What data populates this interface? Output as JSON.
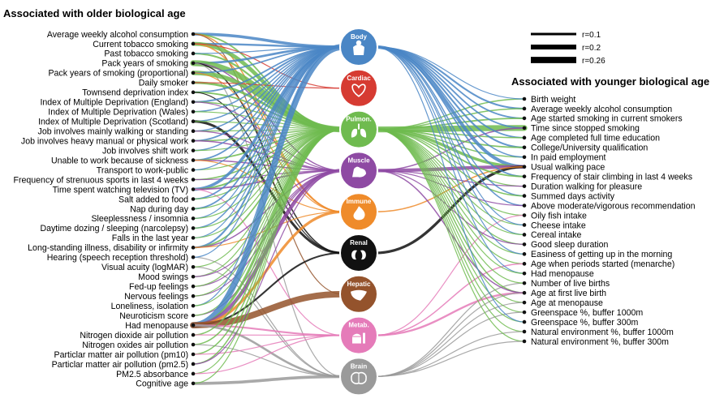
{
  "headings": {
    "older": "Associated with older biological age",
    "younger": "Associated with younger biological age"
  },
  "legend": [
    {
      "label": "r=0.1",
      "r": 0.1
    },
    {
      "label": "r=0.2",
      "r": 0.2
    },
    {
      "label": "r=0.26",
      "r": 0.26
    }
  ],
  "organs": [
    {
      "label": "Body",
      "color": "#4a86c5",
      "icon": "body-icon"
    },
    {
      "label": "Cardiac",
      "color": "#d63b32",
      "icon": "heart-icon"
    },
    {
      "label": "Pulmon.",
      "color": "#6fbb4f",
      "icon": "lungs-icon"
    },
    {
      "label": "Muscle",
      "color": "#8e4aa3",
      "icon": "muscle-icon"
    },
    {
      "label": "Immune",
      "color": "#ef8b2a",
      "icon": "flame-icon"
    },
    {
      "label": "Renal",
      "color": "#111111",
      "icon": "kidneys-icon"
    },
    {
      "label": "Hepatic",
      "color": "#94532c",
      "icon": "liver-icon"
    },
    {
      "label": "Metab.",
      "color": "#e57bb9",
      "icon": "food-icon"
    },
    {
      "label": "Brain",
      "color": "#9a9a9a",
      "icon": "brain-icon"
    }
  ],
  "older_factors": [
    "Average weekly alcohol consumption",
    "Current tobacco smoking",
    "Past tobacco smoking",
    "Pack years of smoking",
    "Pack years of smoking (proportional)",
    "Daily smoker",
    "Townsend deprivation index",
    "Index of Multiple Deprivation (England)",
    "Index of Multiple Deprivation (Wales)",
    "Index of Multiple Deprivation (Scotland)",
    "Job involves mainly walking or standing",
    "Job involves heavy manual or physical work",
    "Job involves shift work",
    "Unable to work because of sickness",
    "Transport to work-public",
    "Frequency of strenuous sports in last 4 weeks",
    "Time spent watching television (TV)",
    "Salt added to food",
    "Nap during day",
    "Sleeplessness / insomnia",
    "Daytime dozing / sleeping (narcolepsy)",
    "Falls in the last year",
    "Long-standing illness, disability or infirmity",
    "Hearing (speech reception threshold)",
    "Visual acuity (logMAR)",
    "Mood swings",
    "Fed-up feelings",
    "Nervous feelings",
    "Loneliness, isolation",
    "Neuroticism score",
    "Had menopause",
    "Nitrogen dioxide air pollution",
    "Nitrogen oxides air pollution",
    "Particlar matter air pollution (pm10)",
    "Particlar matter air pollution (pm2.5)",
    "PM2.5 absorbance",
    "Cognitive age"
  ],
  "younger_factors": [
    "Birth weight",
    "Average weekly alcohol consumption",
    "Age started smoking in current smokers",
    "Time since stopped smoking",
    "Age completed full time education",
    "College/University qualification",
    "In paid employment",
    "Usual walking pace",
    "Frequency of stair climbing in last 4 weeks",
    "Duration walking for pleasure",
    "Summed days activity",
    "Above moderate/vigorous recommendation",
    "Oily fish intake",
    "Cheese intake",
    "Cereal intake",
    "Good sleep duration",
    "Easiness of getting up in the morning",
    "Age when periods started (menarche)",
    "Had menopause",
    "Number of live births",
    "Age at first live birth",
    "Age at menopause",
    "Greenspace %, buffer 1000m",
    "Greenspace %, buffer 300m",
    "Natural environment %, buffer 1000m",
    "Natural environment %, buffer 300m"
  ],
  "links_older": [
    {
      "factor": 0,
      "organ": 0,
      "r": 0.12
    },
    {
      "factor": 0,
      "organ": 2,
      "r": 0.06
    },
    {
      "factor": 0,
      "organ": 4,
      "r": 0.05
    },
    {
      "factor": 0,
      "organ": 6,
      "r": 0.04
    },
    {
      "factor": 1,
      "organ": 0,
      "r": 0.08
    },
    {
      "factor": 1,
      "organ": 2,
      "r": 0.16
    },
    {
      "factor": 1,
      "organ": 4,
      "r": 0.05
    },
    {
      "factor": 1,
      "organ": 1,
      "r": 0.04
    },
    {
      "factor": 2,
      "organ": 2,
      "r": 0.07
    },
    {
      "factor": 2,
      "organ": 0,
      "r": 0.04
    },
    {
      "factor": 3,
      "organ": 0,
      "r": 0.09
    },
    {
      "factor": 3,
      "organ": 2,
      "r": 0.24
    },
    {
      "factor": 3,
      "organ": 3,
      "r": 0.05
    },
    {
      "factor": 3,
      "organ": 5,
      "r": 0.05
    },
    {
      "factor": 3,
      "organ": 8,
      "r": 0.04
    },
    {
      "factor": 4,
      "organ": 2,
      "r": 0.18
    },
    {
      "factor": 4,
      "organ": 0,
      "r": 0.06
    },
    {
      "factor": 4,
      "organ": 4,
      "r": 0.04
    },
    {
      "factor": 5,
      "organ": 2,
      "r": 0.1
    },
    {
      "factor": 5,
      "organ": 1,
      "r": 0.04
    },
    {
      "factor": 6,
      "organ": 0,
      "r": 0.06
    },
    {
      "factor": 6,
      "organ": 2,
      "r": 0.06
    },
    {
      "factor": 6,
      "organ": 5,
      "r": 0.04
    },
    {
      "factor": 7,
      "organ": 0,
      "r": 0.07
    },
    {
      "factor": 7,
      "organ": 2,
      "r": 0.05
    },
    {
      "factor": 7,
      "organ": 3,
      "r": 0.04
    },
    {
      "factor": 8,
      "organ": 0,
      "r": 0.05
    },
    {
      "factor": 8,
      "organ": 2,
      "r": 0.04
    },
    {
      "factor": 9,
      "organ": 0,
      "r": 0.05
    },
    {
      "factor": 9,
      "organ": 5,
      "r": 0.1
    },
    {
      "factor": 9,
      "organ": 2,
      "r": 0.04
    },
    {
      "factor": 10,
      "organ": 0,
      "r": 0.05
    },
    {
      "factor": 10,
      "organ": 2,
      "r": 0.04
    },
    {
      "factor": 10,
      "organ": 3,
      "r": 0.04
    },
    {
      "factor": 11,
      "organ": 0,
      "r": 0.06
    },
    {
      "factor": 11,
      "organ": 2,
      "r": 0.05
    },
    {
      "factor": 11,
      "organ": 3,
      "r": 0.05
    },
    {
      "factor": 12,
      "organ": 0,
      "r": 0.05
    },
    {
      "factor": 12,
      "organ": 2,
      "r": 0.04
    },
    {
      "factor": 13,
      "organ": 0,
      "r": 0.06
    },
    {
      "factor": 13,
      "organ": 2,
      "r": 0.06
    },
    {
      "factor": 13,
      "organ": 3,
      "r": 0.05
    },
    {
      "factor": 13,
      "organ": 4,
      "r": 0.04
    },
    {
      "factor": 14,
      "organ": 2,
      "r": 0.04
    },
    {
      "factor": 14,
      "organ": 0,
      "r": 0.04
    },
    {
      "factor": 15,
      "organ": 2,
      "r": 0.05
    },
    {
      "factor": 15,
      "organ": 3,
      "r": 0.04
    },
    {
      "factor": 16,
      "organ": 0,
      "r": 0.12
    },
    {
      "factor": 16,
      "organ": 2,
      "r": 0.07
    },
    {
      "factor": 16,
      "organ": 3,
      "r": 0.06
    },
    {
      "factor": 16,
      "organ": 7,
      "r": 0.04
    },
    {
      "factor": 17,
      "organ": 0,
      "r": 0.06
    },
    {
      "factor": 17,
      "organ": 2,
      "r": 0.04
    },
    {
      "factor": 18,
      "organ": 0,
      "r": 0.06
    },
    {
      "factor": 18,
      "organ": 2,
      "r": 0.04
    },
    {
      "factor": 19,
      "organ": 0,
      "r": 0.04
    },
    {
      "factor": 19,
      "organ": 2,
      "r": 0.04
    },
    {
      "factor": 20,
      "organ": 0,
      "r": 0.05
    },
    {
      "factor": 20,
      "organ": 2,
      "r": 0.04
    },
    {
      "factor": 21,
      "organ": 0,
      "r": 0.04
    },
    {
      "factor": 21,
      "organ": 2,
      "r": 0.04
    },
    {
      "factor": 22,
      "organ": 0,
      "r": 0.07
    },
    {
      "factor": 22,
      "organ": 2,
      "r": 0.06
    },
    {
      "factor": 22,
      "organ": 3,
      "r": 0.05
    },
    {
      "factor": 22,
      "organ": 4,
      "r": 0.04
    },
    {
      "factor": 23,
      "organ": 8,
      "r": 0.04
    },
    {
      "factor": 23,
      "organ": 0,
      "r": 0.04
    },
    {
      "factor": 24,
      "organ": 8,
      "r": 0.04
    },
    {
      "factor": 24,
      "organ": 2,
      "r": 0.04
    },
    {
      "factor": 25,
      "organ": 2,
      "r": 0.04
    },
    {
      "factor": 25,
      "organ": 3,
      "r": 0.04
    },
    {
      "factor": 26,
      "organ": 3,
      "r": 0.04
    },
    {
      "factor": 26,
      "organ": 2,
      "r": 0.04
    },
    {
      "factor": 27,
      "organ": 3,
      "r": 0.04
    },
    {
      "factor": 27,
      "organ": 2,
      "r": 0.04
    },
    {
      "factor": 28,
      "organ": 0,
      "r": 0.04
    },
    {
      "factor": 28,
      "organ": 2,
      "r": 0.04
    },
    {
      "factor": 29,
      "organ": 3,
      "r": 0.04
    },
    {
      "factor": 29,
      "organ": 2,
      "r": 0.04
    },
    {
      "factor": 30,
      "organ": 0,
      "r": 0.25
    },
    {
      "factor": 30,
      "organ": 2,
      "r": 0.1
    },
    {
      "factor": 30,
      "organ": 3,
      "r": 0.15
    },
    {
      "factor": 30,
      "organ": 4,
      "r": 0.11
    },
    {
      "factor": 30,
      "organ": 5,
      "r": 0.07
    },
    {
      "factor": 30,
      "organ": 6,
      "r": 0.26
    },
    {
      "factor": 30,
      "organ": 7,
      "r": 0.07
    },
    {
      "factor": 30,
      "organ": 8,
      "r": 0.09
    },
    {
      "factor": 31,
      "organ": 2,
      "r": 0.05
    },
    {
      "factor": 31,
      "organ": 7,
      "r": 0.04
    },
    {
      "factor": 32,
      "organ": 2,
      "r": 0.05
    },
    {
      "factor": 32,
      "organ": 8,
      "r": 0.04
    },
    {
      "factor": 33,
      "organ": 2,
      "r": 0.05
    },
    {
      "factor": 33,
      "organ": 7,
      "r": 0.04
    },
    {
      "factor": 34,
      "organ": 2,
      "r": 0.05
    },
    {
      "factor": 34,
      "organ": 3,
      "r": 0.04
    },
    {
      "factor": 35,
      "organ": 2,
      "r": 0.04
    },
    {
      "factor": 35,
      "organ": 7,
      "r": 0.04
    },
    {
      "factor": 36,
      "organ": 8,
      "r": 0.12
    },
    {
      "factor": 36,
      "organ": 2,
      "r": 0.04
    }
  ],
  "links_younger": [
    {
      "factor": 0,
      "organ": 2,
      "r": 0.05
    },
    {
      "factor": 0,
      "organ": 0,
      "r": 0.04
    },
    {
      "factor": 1,
      "organ": 0,
      "r": 0.07
    },
    {
      "factor": 1,
      "organ": 2,
      "r": 0.05
    },
    {
      "factor": 2,
      "organ": 0,
      "r": 0.06
    },
    {
      "factor": 2,
      "organ": 2,
      "r": 0.06
    },
    {
      "factor": 3,
      "organ": 2,
      "r": 0.24
    },
    {
      "factor": 3,
      "organ": 0,
      "r": 0.06
    },
    {
      "factor": 3,
      "organ": 3,
      "r": 0.05
    },
    {
      "factor": 4,
      "organ": 0,
      "r": 0.06
    },
    {
      "factor": 4,
      "organ": 2,
      "r": 0.05
    },
    {
      "factor": 5,
      "organ": 0,
      "r": 0.07
    },
    {
      "factor": 5,
      "organ": 2,
      "r": 0.06
    },
    {
      "factor": 6,
      "organ": 2,
      "r": 0.05
    },
    {
      "factor": 6,
      "organ": 0,
      "r": 0.05
    },
    {
      "factor": 7,
      "organ": 0,
      "r": 0.14
    },
    {
      "factor": 7,
      "organ": 2,
      "r": 0.12
    },
    {
      "factor": 7,
      "organ": 3,
      "r": 0.14
    },
    {
      "factor": 7,
      "organ": 5,
      "r": 0.11
    },
    {
      "factor": 7,
      "organ": 4,
      "r": 0.05
    },
    {
      "factor": 8,
      "organ": 0,
      "r": 0.06
    },
    {
      "factor": 8,
      "organ": 2,
      "r": 0.06
    },
    {
      "factor": 9,
      "organ": 2,
      "r": 0.04
    },
    {
      "factor": 9,
      "organ": 3,
      "r": 0.04
    },
    {
      "factor": 10,
      "organ": 0,
      "r": 0.05
    },
    {
      "factor": 10,
      "organ": 2,
      "r": 0.05
    },
    {
      "factor": 11,
      "organ": 0,
      "r": 0.05
    },
    {
      "factor": 11,
      "organ": 3,
      "r": 0.04
    },
    {
      "factor": 12,
      "organ": 2,
      "r": 0.04
    },
    {
      "factor": 12,
      "organ": 7,
      "r": 0.04
    },
    {
      "factor": 13,
      "organ": 2,
      "r": 0.04
    },
    {
      "factor": 13,
      "organ": 0,
      "r": 0.04
    },
    {
      "factor": 14,
      "organ": 0,
      "r": 0.04
    },
    {
      "factor": 14,
      "organ": 2,
      "r": 0.04
    },
    {
      "factor": 15,
      "organ": 2,
      "r": 0.04
    },
    {
      "factor": 15,
      "organ": 3,
      "r": 0.04
    },
    {
      "factor": 16,
      "organ": 2,
      "r": 0.04
    },
    {
      "factor": 16,
      "organ": 0,
      "r": 0.04
    },
    {
      "factor": 17,
      "organ": 2,
      "r": 0.04
    },
    {
      "factor": 17,
      "organ": 7,
      "r": 0.05
    },
    {
      "factor": 18,
      "organ": 0,
      "r": 0.04
    },
    {
      "factor": 18,
      "organ": 2,
      "r": 0.04
    },
    {
      "factor": 19,
      "organ": 8,
      "r": 0.04
    },
    {
      "factor": 19,
      "organ": 2,
      "r": 0.04
    },
    {
      "factor": 20,
      "organ": 2,
      "r": 0.05
    },
    {
      "factor": 20,
      "organ": 7,
      "r": 0.08
    },
    {
      "factor": 20,
      "organ": 3,
      "r": 0.05
    },
    {
      "factor": 20,
      "organ": 8,
      "r": 0.04
    },
    {
      "factor": 21,
      "organ": 2,
      "r": 0.04
    },
    {
      "factor": 21,
      "organ": 8,
      "r": 0.04
    },
    {
      "factor": 22,
      "organ": 2,
      "r": 0.04
    },
    {
      "factor": 22,
      "organ": 8,
      "r": 0.04
    },
    {
      "factor": 23,
      "organ": 2,
      "r": 0.04
    },
    {
      "factor": 23,
      "organ": 0,
      "r": 0.04
    },
    {
      "factor": 24,
      "organ": 2,
      "r": 0.04
    },
    {
      "factor": 24,
      "organ": 8,
      "r": 0.04
    },
    {
      "factor": 25,
      "organ": 2,
      "r": 0.04
    },
    {
      "factor": 25,
      "organ": 8,
      "r": 0.04
    }
  ]
}
